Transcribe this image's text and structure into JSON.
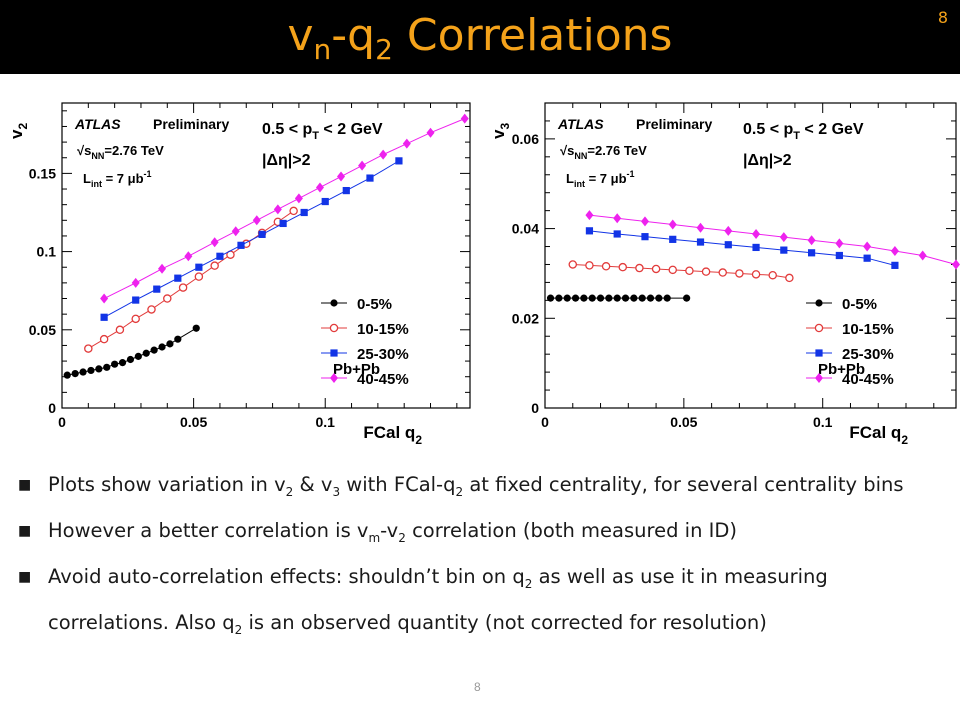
{
  "header": {
    "title_v": "v",
    "title_sub_n": "n",
    "title_dash_q": "-q",
    "title_sub_2": "2",
    "title_rest": " Correlations",
    "slide_number": "8",
    "title_color": "#f4a21a"
  },
  "footer": {
    "slide_number": "8"
  },
  "bullets": [
    {
      "parts": [
        [
          "t",
          "Plots show variation in v"
        ],
        [
          "s",
          "2"
        ],
        [
          "t",
          " & v"
        ],
        [
          "s",
          "3"
        ],
        [
          "t",
          " with FCal-q"
        ],
        [
          "s",
          "2"
        ],
        [
          "t",
          " at fixed centrality, for several centrality bins"
        ]
      ]
    },
    {
      "parts": [
        [
          "t",
          "However a better correlation is v"
        ],
        [
          "s",
          "m"
        ],
        [
          "t",
          "-v"
        ],
        [
          "s",
          "2"
        ],
        [
          "t",
          " correlation (both measured in ID)"
        ]
      ]
    },
    {
      "parts": [
        [
          "t",
          "Avoid auto-correlation effects: shouldn’t  bin on q"
        ],
        [
          "s",
          "2"
        ],
        [
          "t",
          " as well as use it in measuring correlations. Also q"
        ],
        [
          "s",
          "2"
        ],
        [
          "t",
          " is an observed quantity (not corrected for resolution)"
        ]
      ]
    }
  ],
  "chart_data": [
    {
      "type": "line",
      "ylabel_main": "v",
      "ylabel_sub": "2",
      "xlabel_main": "FCal q",
      "xlabel_sub": "2",
      "xlim": [
        0,
        0.155
      ],
      "ylim": [
        0,
        0.195
      ],
      "xticks": [
        0,
        0.05,
        0.1
      ],
      "xtick_labels": [
        "0",
        "0.05",
        "0.1"
      ],
      "yticks": [
        0,
        0.05,
        0.1,
        0.15
      ],
      "ytick_labels": [
        "0",
        "0.05",
        "0.1",
        "0.15"
      ],
      "annotations": {
        "atlas": "ATLAS",
        "preliminary": "Preliminary",
        "sqrt_s": "√s",
        "sqrt_s_sub": "NN",
        "energy": "=2.76 TeV",
        "lumi_main": "L",
        "lumi_sub": "int",
        "lumi_val": " = 7 μb",
        "lumi_exp": "-1",
        "pt_left": "0.5 < p",
        "pt_sub": "T",
        "pt_right": " < 2 GeV",
        "eta": "|Δη|>2",
        "system": "Pb+Pb"
      },
      "series": [
        {
          "name": "0-5%",
          "marker": "circle-filled",
          "color": "#000000",
          "x": [
            0.002,
            0.005,
            0.008,
            0.011,
            0.014,
            0.017,
            0.02,
            0.023,
            0.026,
            0.029,
            0.032,
            0.035,
            0.038,
            0.041,
            0.044,
            0.051
          ],
          "y": [
            0.021,
            0.022,
            0.023,
            0.024,
            0.025,
            0.026,
            0.028,
            0.029,
            0.031,
            0.033,
            0.035,
            0.037,
            0.039,
            0.041,
            0.044,
            0.051
          ]
        },
        {
          "name": "10-15%",
          "marker": "circle-open",
          "color": "#e23b3b",
          "x": [
            0.01,
            0.016,
            0.022,
            0.028,
            0.034,
            0.04,
            0.046,
            0.052,
            0.058,
            0.064,
            0.07,
            0.076,
            0.082,
            0.088
          ],
          "y": [
            0.038,
            0.044,
            0.05,
            0.057,
            0.063,
            0.07,
            0.077,
            0.084,
            0.091,
            0.098,
            0.105,
            0.112,
            0.119,
            0.126
          ]
        },
        {
          "name": "25-30%",
          "marker": "square-filled",
          "color": "#1234e6",
          "x": [
            0.016,
            0.028,
            0.036,
            0.044,
            0.052,
            0.06,
            0.068,
            0.076,
            0.084,
            0.092,
            0.1,
            0.108,
            0.117,
            0.128
          ],
          "y": [
            0.058,
            0.069,
            0.076,
            0.083,
            0.09,
            0.097,
            0.104,
            0.111,
            0.118,
            0.125,
            0.132,
            0.139,
            0.147,
            0.158
          ]
        },
        {
          "name": "40-45%",
          "marker": "diamond-filled",
          "color": "#ee22ee",
          "x": [
            0.016,
            0.028,
            0.038,
            0.048,
            0.058,
            0.066,
            0.074,
            0.082,
            0.09,
            0.098,
            0.106,
            0.114,
            0.122,
            0.131,
            0.14,
            0.153
          ],
          "y": [
            0.07,
            0.08,
            0.089,
            0.097,
            0.106,
            0.113,
            0.12,
            0.127,
            0.134,
            0.141,
            0.148,
            0.155,
            0.162,
            0.169,
            0.176,
            0.185
          ]
        }
      ]
    },
    {
      "type": "line",
      "ylabel_main": "v",
      "ylabel_sub": "3",
      "xlabel_main": "FCal q",
      "xlabel_sub": "2",
      "xlim": [
        0,
        0.148
      ],
      "ylim": [
        0,
        0.068
      ],
      "xticks": [
        0,
        0.05,
        0.1
      ],
      "xtick_labels": [
        "0",
        "0.05",
        "0.1"
      ],
      "yticks": [
        0,
        0.02,
        0.04,
        0.06
      ],
      "ytick_labels": [
        "0",
        "0.02",
        "0.04",
        "0.06"
      ],
      "annotations": {
        "atlas": "ATLAS",
        "preliminary": "Preliminary",
        "sqrt_s": "√s",
        "sqrt_s_sub": "NN",
        "energy": "=2.76 TeV",
        "lumi_main": "L",
        "lumi_sub": "int",
        "lumi_val": " = 7 μb",
        "lumi_exp": "-1",
        "pt_left": "0.5 < p",
        "pt_sub": "T",
        "pt_right": " < 2 GeV",
        "eta": "|Δη|>2",
        "system": "Pb+Pb"
      },
      "series": [
        {
          "name": "0-5%",
          "marker": "circle-filled",
          "color": "#000000",
          "x": [
            0.002,
            0.005,
            0.008,
            0.011,
            0.014,
            0.017,
            0.02,
            0.023,
            0.026,
            0.029,
            0.032,
            0.035,
            0.038,
            0.041,
            0.044,
            0.051
          ],
          "y": [
            0.0245,
            0.0245,
            0.0245,
            0.0245,
            0.0245,
            0.0245,
            0.0245,
            0.0245,
            0.0245,
            0.0245,
            0.0245,
            0.0245,
            0.0245,
            0.0245,
            0.0245,
            0.0245
          ]
        },
        {
          "name": "10-15%",
          "marker": "circle-open",
          "color": "#e23b3b",
          "x": [
            0.01,
            0.016,
            0.022,
            0.028,
            0.034,
            0.04,
            0.046,
            0.052,
            0.058,
            0.064,
            0.07,
            0.076,
            0.082,
            0.088
          ],
          "y": [
            0.032,
            0.0318,
            0.0316,
            0.0314,
            0.0312,
            0.031,
            0.0308,
            0.0306,
            0.0304,
            0.0302,
            0.03,
            0.0298,
            0.0296,
            0.029
          ]
        },
        {
          "name": "25-30%",
          "marker": "square-filled",
          "color": "#1234e6",
          "x": [
            0.016,
            0.026,
            0.036,
            0.046,
            0.056,
            0.066,
            0.076,
            0.086,
            0.096,
            0.106,
            0.116,
            0.126
          ],
          "y": [
            0.0395,
            0.0388,
            0.0382,
            0.0376,
            0.037,
            0.0364,
            0.0358,
            0.0352,
            0.0346,
            0.034,
            0.0334,
            0.0318
          ]
        },
        {
          "name": "40-45%",
          "marker": "diamond-filled",
          "color": "#ee22ee",
          "x": [
            0.016,
            0.026,
            0.036,
            0.046,
            0.056,
            0.066,
            0.076,
            0.086,
            0.096,
            0.106,
            0.116,
            0.126,
            0.136,
            0.148
          ],
          "y": [
            0.043,
            0.0423,
            0.0416,
            0.0409,
            0.0402,
            0.0395,
            0.0388,
            0.0381,
            0.0374,
            0.0367,
            0.036,
            0.035,
            0.034,
            0.032
          ]
        }
      ]
    }
  ]
}
